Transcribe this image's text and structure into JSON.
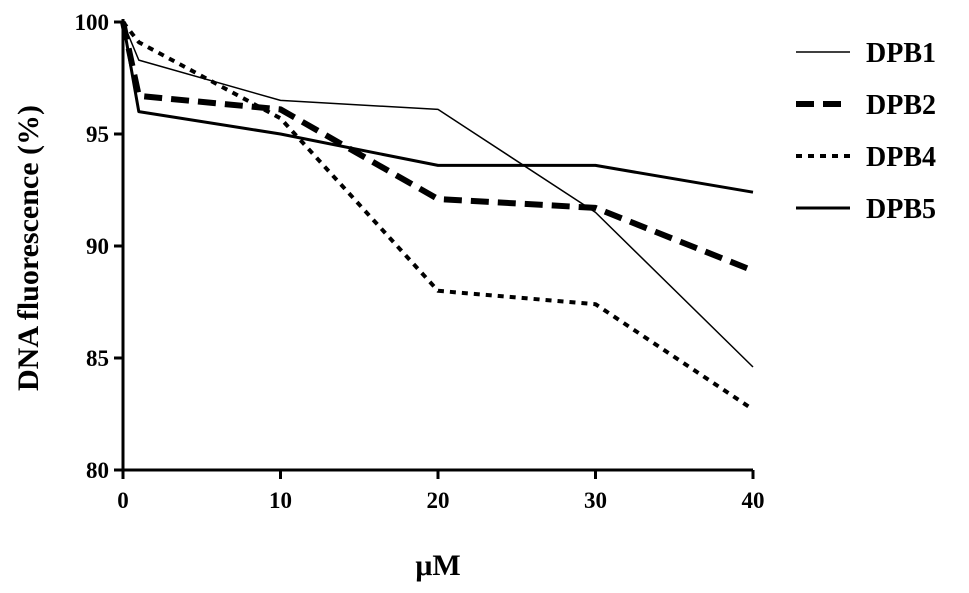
{
  "chart_data": {
    "type": "line",
    "xlabel": "μM",
    "ylabel": "DNA fluorescence (%)",
    "xlim": [
      0,
      40
    ],
    "ylim": [
      80,
      100
    ],
    "xticks": [
      0,
      10,
      20,
      30,
      40
    ],
    "yticks": [
      80,
      85,
      90,
      95,
      100
    ],
    "grid": false,
    "legend_position": "top-right",
    "series": [
      {
        "name": "DPB1",
        "style": "thin-solid",
        "x": [
          0,
          1,
          10,
          20,
          30,
          40
        ],
        "y": [
          100,
          98.3,
          96.5,
          96.1,
          91.5,
          84.6
        ]
      },
      {
        "name": "DPB2",
        "style": "thick-dashed",
        "x": [
          0,
          1,
          10,
          20,
          30,
          40
        ],
        "y": [
          100,
          96.7,
          96.1,
          92.1,
          91.7,
          88.9
        ]
      },
      {
        "name": "DPB4",
        "style": "dotted",
        "x": [
          0,
          1,
          10,
          20,
          30,
          40
        ],
        "y": [
          100,
          99.1,
          95.7,
          88.0,
          87.4,
          82.7
        ]
      },
      {
        "name": "DPB5",
        "style": "solid",
        "x": [
          0,
          1,
          10,
          20,
          30,
          40
        ],
        "y": [
          100,
          96.0,
          95.0,
          93.6,
          93.6,
          92.4
        ]
      }
    ]
  }
}
